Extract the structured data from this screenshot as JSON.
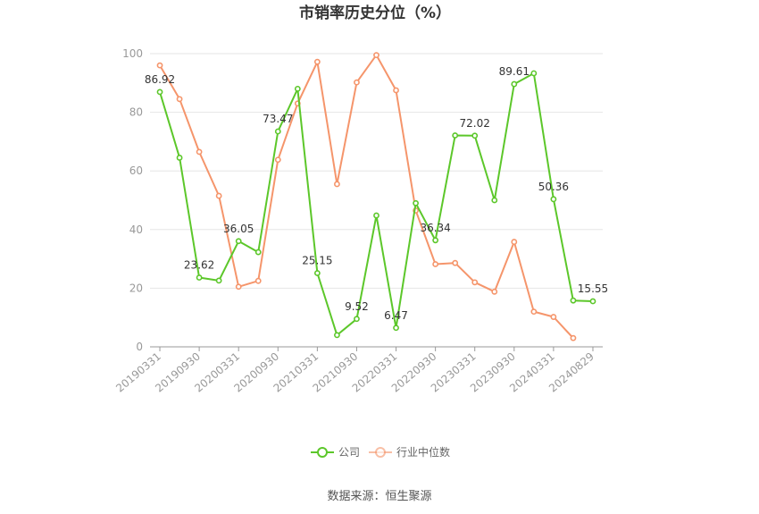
{
  "chart_data": {
    "type": "line",
    "title": "市销率历史分位（%）",
    "source": "数据来源：恒生聚源",
    "ylim": [
      0,
      100
    ],
    "yticks": [
      0,
      20,
      40,
      60,
      80,
      100
    ],
    "grid": true,
    "legend_position": "bottom-center",
    "x": [
      "20190331",
      "20190630",
      "20190930",
      "20191231",
      "20200331",
      "20200630",
      "20200930",
      "20201231",
      "20210331",
      "20210630",
      "20210930",
      "20211231",
      "20220331",
      "20220630",
      "20220930",
      "20221231",
      "20230331",
      "20230630",
      "20230930",
      "20231231",
      "20240331",
      "20240630",
      "20240829"
    ],
    "x_tick_labels": [
      "20190331",
      "20190930",
      "20200331",
      "20200930",
      "20210331",
      "20210930",
      "20220331",
      "20220930",
      "20230331",
      "20230930",
      "20240331",
      "20240829"
    ],
    "x_tick_indices": [
      0,
      2,
      4,
      6,
      8,
      10,
      12,
      14,
      16,
      18,
      20,
      22
    ],
    "series": [
      {
        "name": "公司",
        "color": "#5cc72a",
        "values": [
          86.92,
          64.5,
          23.62,
          22.6,
          36.05,
          32.3,
          73.47,
          88.0,
          25.15,
          4.0,
          9.52,
          44.8,
          6.47,
          49.0,
          36.34,
          72.1,
          72.02,
          50.0,
          89.61,
          93.3,
          50.36,
          15.8,
          15.55
        ],
        "labels": [
          "86.92",
          "",
          "23.62",
          "",
          "36.05",
          "",
          "73.47",
          "",
          "25.15",
          "",
          "9.52",
          "",
          "6.47",
          "",
          "36.34",
          "",
          "72.02",
          "",
          "89.61",
          "",
          "50.36",
          "",
          "15.55"
        ]
      },
      {
        "name": "行业中位数",
        "color": "#f5956b",
        "values": [
          96.0,
          84.5,
          66.5,
          51.5,
          20.5,
          22.5,
          63.8,
          83.0,
          97.2,
          55.5,
          90.2,
          99.5,
          87.5,
          46.5,
          28.2,
          28.6,
          22.0,
          18.8,
          35.8,
          12.0,
          10.2,
          3.0,
          null
        ]
      }
    ]
  }
}
